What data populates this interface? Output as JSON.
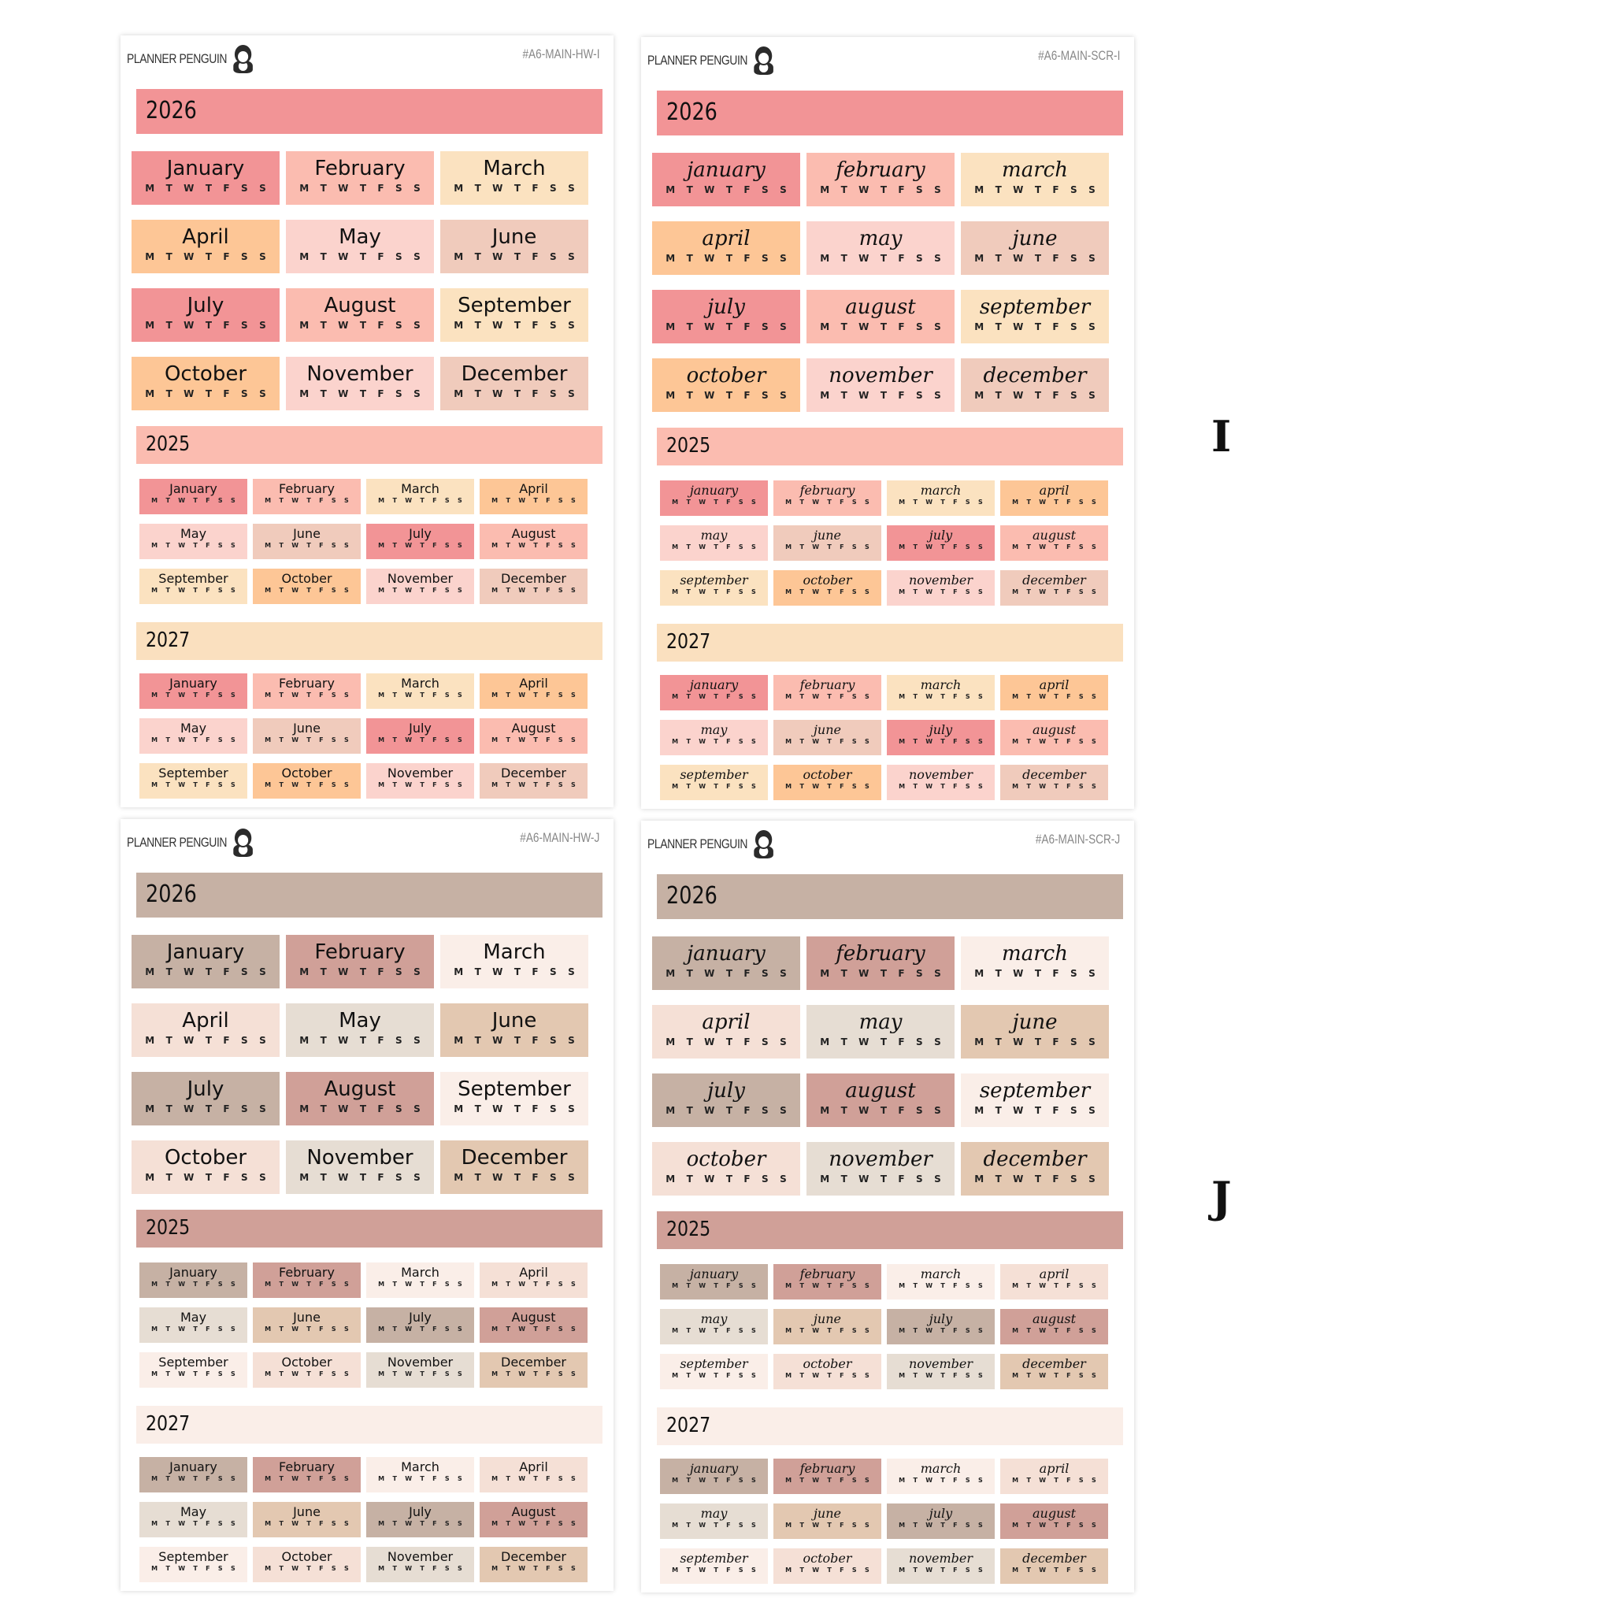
{
  "weekdays": [
    "M",
    "T",
    "W",
    "T",
    "F",
    "S",
    "S"
  ],
  "months_hw": [
    "January",
    "February",
    "March",
    "April",
    "May",
    "June",
    "July",
    "August",
    "September",
    "October",
    "November",
    "December"
  ],
  "months_scr": [
    "january",
    "february",
    "march",
    "april",
    "may",
    "june",
    "july",
    "august",
    "september",
    "october",
    "november",
    "december"
  ],
  "group_labels": [
    "I",
    "J"
  ],
  "palettes": {
    "I": [
      "#f29496",
      "#fbbcb0",
      "#fbe2c0",
      "#fdc696",
      "#fbd3cd",
      "#f0cbbc"
    ],
    "J": [
      "#c6b1a4",
      "#d0a098",
      "#faeee8",
      "#f5e0d6",
      "#e6ddd3",
      "#e3c8b1"
    ]
  },
  "sheets": [
    {
      "brand": "PLANNER PENGUIN",
      "code": "#A6-MAIN-HW-I",
      "style": "hw",
      "palette": "I",
      "sections": [
        {
          "year": "2026",
          "color": "#f29496",
          "layout": "large"
        },
        {
          "year": "2025",
          "color": "#fbbcb0",
          "layout": "small"
        },
        {
          "year": "2027",
          "color": "#fae0bf",
          "layout": "small"
        }
      ]
    },
    {
      "brand": "PLANNER PENGUIN",
      "code": "#A6-MAIN-SCR-I",
      "style": "scr",
      "palette": "I",
      "sections": [
        {
          "year": "2026",
          "color": "#f29496",
          "layout": "large"
        },
        {
          "year": "2025",
          "color": "#fbbcb0",
          "layout": "small"
        },
        {
          "year": "2027",
          "color": "#fae0bf",
          "layout": "small"
        }
      ]
    },
    {
      "brand": "PLANNER PENGUIN",
      "code": "#A6-MAIN-HW-J",
      "style": "hw",
      "palette": "J",
      "sections": [
        {
          "year": "2026",
          "color": "#c6b1a4",
          "layout": "large"
        },
        {
          "year": "2025",
          "color": "#d0a098",
          "layout": "small"
        },
        {
          "year": "2027",
          "color": "#faeee8",
          "layout": "small"
        }
      ]
    },
    {
      "brand": "PLANNER PENGUIN",
      "code": "#A6-MAIN-SCR-J",
      "style": "scr",
      "palette": "J",
      "sections": [
        {
          "year": "2026",
          "color": "#c6b1a4",
          "layout": "large"
        },
        {
          "year": "2025",
          "color": "#d0a098",
          "layout": "small"
        },
        {
          "year": "2027",
          "color": "#faeee8",
          "layout": "small"
        }
      ]
    }
  ]
}
